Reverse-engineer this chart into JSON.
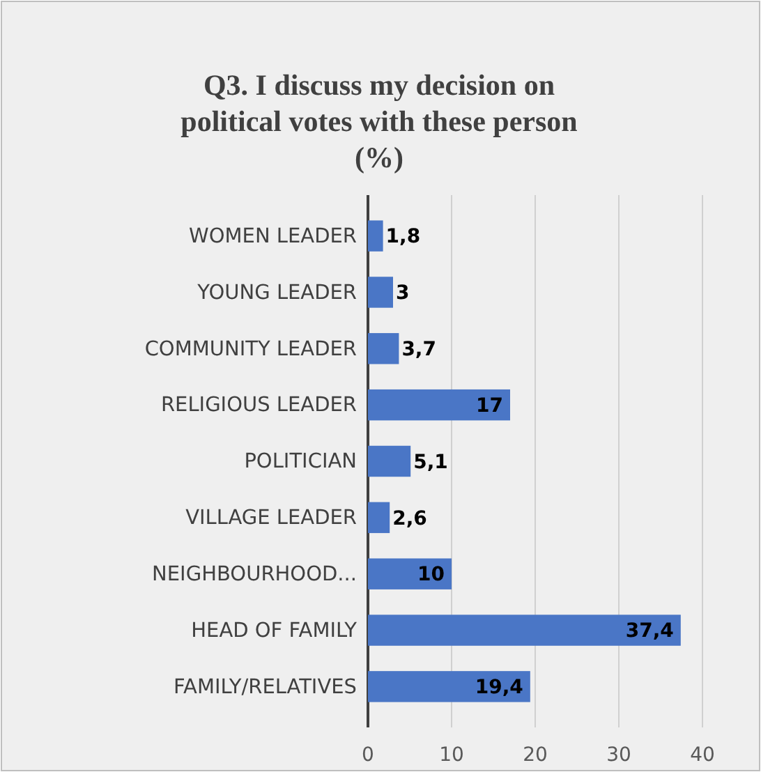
{
  "chart_data": {
    "type": "bar",
    "orientation": "horizontal",
    "title": "Q3. I discuss my decision on political votes with these person (%)",
    "categories": [
      "WOMEN LEADER",
      "YOUNG LEADER",
      "COMMUNITY LEADER",
      "RELIGIOUS LEADER",
      "POLITICIAN",
      "VILLAGE LEADER",
      "NEIGHBOURHOOD...",
      "HEAD OF FAMILY",
      "FAMILY/RELATIVES"
    ],
    "values": [
      1.8,
      3,
      3.7,
      17,
      5.1,
      2.6,
      10,
      37.4,
      19.4
    ],
    "value_labels": [
      "1,8",
      "3",
      "3,7",
      "17",
      "5,1",
      "2,6",
      "10",
      "37,4",
      "19,4"
    ],
    "color": "#4a76c6",
    "xlim": [
      0,
      40
    ],
    "xticks": [
      0,
      10,
      20,
      30,
      40
    ],
    "grid": "x"
  }
}
